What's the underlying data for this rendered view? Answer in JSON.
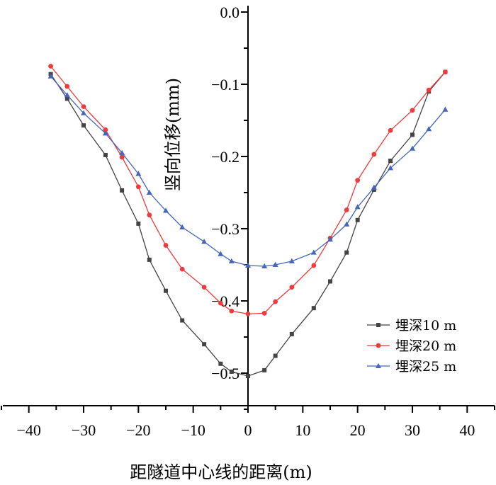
{
  "chart_data": {
    "type": "line",
    "title": "",
    "xlabel": "距隧道中心线的距离(m)",
    "ylabel": "竖向位移(mm)",
    "xlim": [
      -45,
      45
    ],
    "ylim": [
      -0.55,
      0.0
    ],
    "x_ticks": [
      -40,
      -30,
      -20,
      -10,
      0,
      10,
      20,
      30,
      40
    ],
    "x_tick_labels": [
      "−40",
      "−30",
      "−20",
      "−10",
      "0",
      "10",
      "20",
      "30",
      "40"
    ],
    "y_ticks": [
      0.0,
      -0.1,
      -0.2,
      -0.3,
      -0.4,
      -0.5
    ],
    "y_tick_labels": [
      "0.0",
      "−0.1",
      "−0.2",
      "−0.3",
      "−0.4",
      "−0.5"
    ],
    "grid": false,
    "legend_position": "bottom-right",
    "series": [
      {
        "name": "埋深10 m",
        "color": "#444444",
        "marker": "square",
        "points": [
          [
            -36,
            -0.086
          ],
          [
            -33,
            -0.12
          ],
          [
            -30,
            -0.157
          ],
          [
            -26,
            -0.198
          ],
          [
            -23,
            -0.247
          ],
          [
            -20,
            -0.293
          ],
          [
            -18,
            -0.343
          ],
          [
            -15,
            -0.386
          ],
          [
            -12,
            -0.427
          ],
          [
            -8,
            -0.46
          ],
          [
            -5,
            -0.487
          ],
          [
            -3,
            -0.498
          ],
          [
            0,
            -0.504
          ],
          [
            3,
            -0.496
          ],
          [
            5,
            -0.476
          ],
          [
            8,
            -0.446
          ],
          [
            12,
            -0.41
          ],
          [
            15,
            -0.373
          ],
          [
            18,
            -0.333
          ],
          [
            20,
            -0.288
          ],
          [
            23,
            -0.246
          ],
          [
            26,
            -0.206
          ],
          [
            30,
            -0.17
          ],
          [
            33,
            -0.11
          ],
          [
            36,
            -0.083
          ]
        ]
      },
      {
        "name": "埋深20 m",
        "color": "#ee3b3b",
        "marker": "circle",
        "points": [
          [
            -36,
            -0.075
          ],
          [
            -33,
            -0.103
          ],
          [
            -30,
            -0.131
          ],
          [
            -26,
            -0.163
          ],
          [
            -23,
            -0.201
          ],
          [
            -20,
            -0.242
          ],
          [
            -18,
            -0.281
          ],
          [
            -15,
            -0.323
          ],
          [
            -12,
            -0.356
          ],
          [
            -8,
            -0.381
          ],
          [
            -5,
            -0.403
          ],
          [
            -3,
            -0.414
          ],
          [
            0,
            -0.418
          ],
          [
            3,
            -0.417
          ],
          [
            5,
            -0.401
          ],
          [
            8,
            -0.381
          ],
          [
            12,
            -0.351
          ],
          [
            15,
            -0.313
          ],
          [
            18,
            -0.274
          ],
          [
            20,
            -0.233
          ],
          [
            23,
            -0.197
          ],
          [
            26,
            -0.164
          ],
          [
            30,
            -0.136
          ],
          [
            33,
            -0.108
          ],
          [
            36,
            -0.083
          ]
        ]
      },
      {
        "name": "埋深25 m",
        "color": "#4466bb",
        "marker": "triangle",
        "points": [
          [
            -36,
            -0.089
          ],
          [
            -33,
            -0.115
          ],
          [
            -30,
            -0.14
          ],
          [
            -26,
            -0.168
          ],
          [
            -23,
            -0.195
          ],
          [
            -20,
            -0.224
          ],
          [
            -18,
            -0.25
          ],
          [
            -15,
            -0.275
          ],
          [
            -12,
            -0.298
          ],
          [
            -8,
            -0.318
          ],
          [
            -5,
            -0.335
          ],
          [
            -3,
            -0.345
          ],
          [
            0,
            -0.351
          ],
          [
            3,
            -0.352
          ],
          [
            5,
            -0.35
          ],
          [
            8,
            -0.345
          ],
          [
            12,
            -0.333
          ],
          [
            15,
            -0.315
          ],
          [
            18,
            -0.294
          ],
          [
            20,
            -0.27
          ],
          [
            23,
            -0.243
          ],
          [
            26,
            -0.216
          ],
          [
            30,
            -0.189
          ],
          [
            33,
            -0.162
          ],
          [
            36,
            -0.135
          ]
        ]
      }
    ]
  }
}
